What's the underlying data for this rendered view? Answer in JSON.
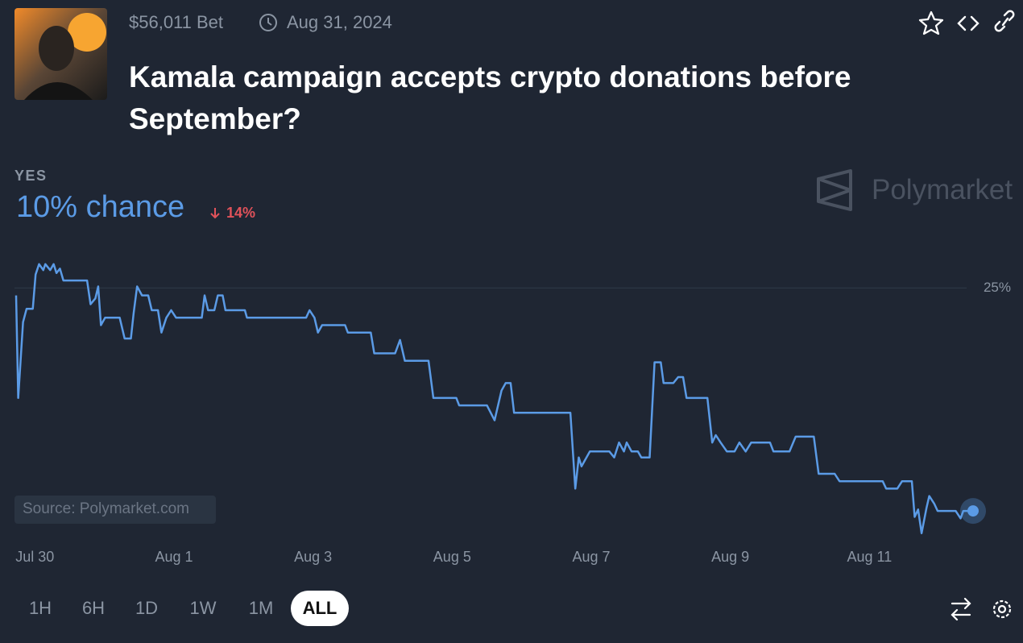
{
  "header": {
    "bet": "$56,011 Bet",
    "date": "Aug 31, 2024",
    "title": "Kamala campaign accepts crypto donations before September?"
  },
  "outcome": {
    "label": "YES",
    "chance": "10% chance",
    "change": "14%"
  },
  "brand": "Polymarket",
  "source": "Source: Polymarket.com",
  "range_buttons": [
    "1H",
    "6H",
    "1D",
    "1W",
    "1M",
    "ALL"
  ],
  "selected_range": "ALL",
  "chart_data": {
    "type": "line",
    "color": "#5b9be6",
    "grid": true,
    "xlim": [
      -0.27,
      13.49
    ],
    "ylim": [
      8,
      28
    ],
    "xticks": [
      {
        "value": 0,
        "label": "Jul 30"
      },
      {
        "value": 2,
        "label": "Aug 1"
      },
      {
        "value": 4,
        "label": "Aug 3"
      },
      {
        "value": 6,
        "label": "Aug 5"
      },
      {
        "value": 8,
        "label": "Aug 7"
      },
      {
        "value": 10,
        "label": "Aug 9"
      },
      {
        "value": 12,
        "label": "Aug 11"
      }
    ],
    "yticks": [
      {
        "value": 25,
        "label": "25%"
      }
    ],
    "x": [
      -0.27,
      -0.24,
      -0.17,
      -0.12,
      -0.03,
      0.01,
      0.06,
      0.12,
      0.15,
      0.22,
      0.27,
      0.31,
      0.36,
      0.41,
      0.75,
      0.8,
      0.87,
      0.91,
      0.95,
      1.01,
      1.22,
      1.29,
      1.38,
      1.42,
      1.47,
      1.54,
      1.63,
      1.68,
      1.77,
      1.82,
      1.89,
      1.96,
      2.03,
      2.4,
      2.44,
      2.49,
      2.58,
      2.63,
      2.7,
      2.74,
      3.02,
      3.05,
      3.9,
      3.95,
      4.02,
      4.07,
      4.13,
      4.46,
      4.5,
      4.83,
      4.88,
      5.18,
      5.25,
      5.32,
      5.66,
      5.73,
      6.06,
      6.1,
      6.5,
      6.61,
      6.71,
      6.77,
      6.84,
      6.89,
      7.7,
      7.77,
      7.82,
      7.86,
      7.98,
      8.26,
      8.33,
      8.4,
      8.47,
      8.51,
      8.58,
      8.67,
      8.72,
      8.84,
      8.91,
      9.0,
      9.04,
      9.18,
      9.25,
      9.32,
      9.37,
      9.67,
      9.74,
      9.79,
      9.86,
      9.95,
      10.06,
      10.13,
      10.22,
      10.3,
      10.57,
      10.62,
      10.85,
      10.94,
      11.2,
      11.27,
      11.5,
      11.57,
      12.19,
      12.24,
      12.4,
      12.47,
      12.61,
      12.65,
      12.7,
      12.75,
      12.82,
      12.86,
      12.93,
      12.98,
      13.24,
      13.31,
      13.35,
      13.49
    ],
    "values": [
      24.5,
      17.6,
      22.7,
      23.6,
      23.6,
      25.9,
      26.6,
      26.2,
      26.6,
      26.2,
      26.6,
      26.0,
      26.3,
      25.5,
      25.5,
      23.9,
      24.3,
      25.1,
      22.5,
      23.0,
      23.0,
      21.6,
      21.6,
      23.3,
      25.1,
      24.5,
      24.5,
      23.5,
      23.5,
      22.0,
      23.0,
      23.5,
      23.0,
      23.0,
      24.5,
      23.5,
      23.5,
      24.5,
      24.5,
      23.5,
      23.5,
      23.0,
      23.0,
      23.5,
      23.0,
      22.0,
      22.5,
      22.5,
      22.0,
      22.0,
      20.6,
      20.6,
      21.5,
      20.1,
      20.1,
      17.6,
      17.6,
      17.1,
      17.1,
      16.1,
      18.1,
      18.6,
      18.6,
      16.6,
      16.6,
      11.5,
      13.6,
      13.0,
      14.0,
      14.0,
      13.6,
      14.6,
      14.0,
      14.6,
      14.0,
      14.0,
      13.6,
      13.6,
      20.0,
      20.0,
      18.6,
      18.6,
      19.0,
      19.0,
      17.6,
      17.6,
      14.6,
      15.1,
      14.6,
      14.0,
      14.0,
      14.6,
      14.0,
      14.6,
      14.6,
      14.0,
      14.0,
      15.0,
      15.0,
      12.5,
      12.5,
      12.0,
      12.0,
      11.5,
      11.5,
      12.0,
      12.0,
      9.6,
      10.1,
      8.5,
      10.2,
      11.0,
      10.5,
      10.0,
      10.0,
      9.5,
      10.0,
      10.0
    ]
  }
}
